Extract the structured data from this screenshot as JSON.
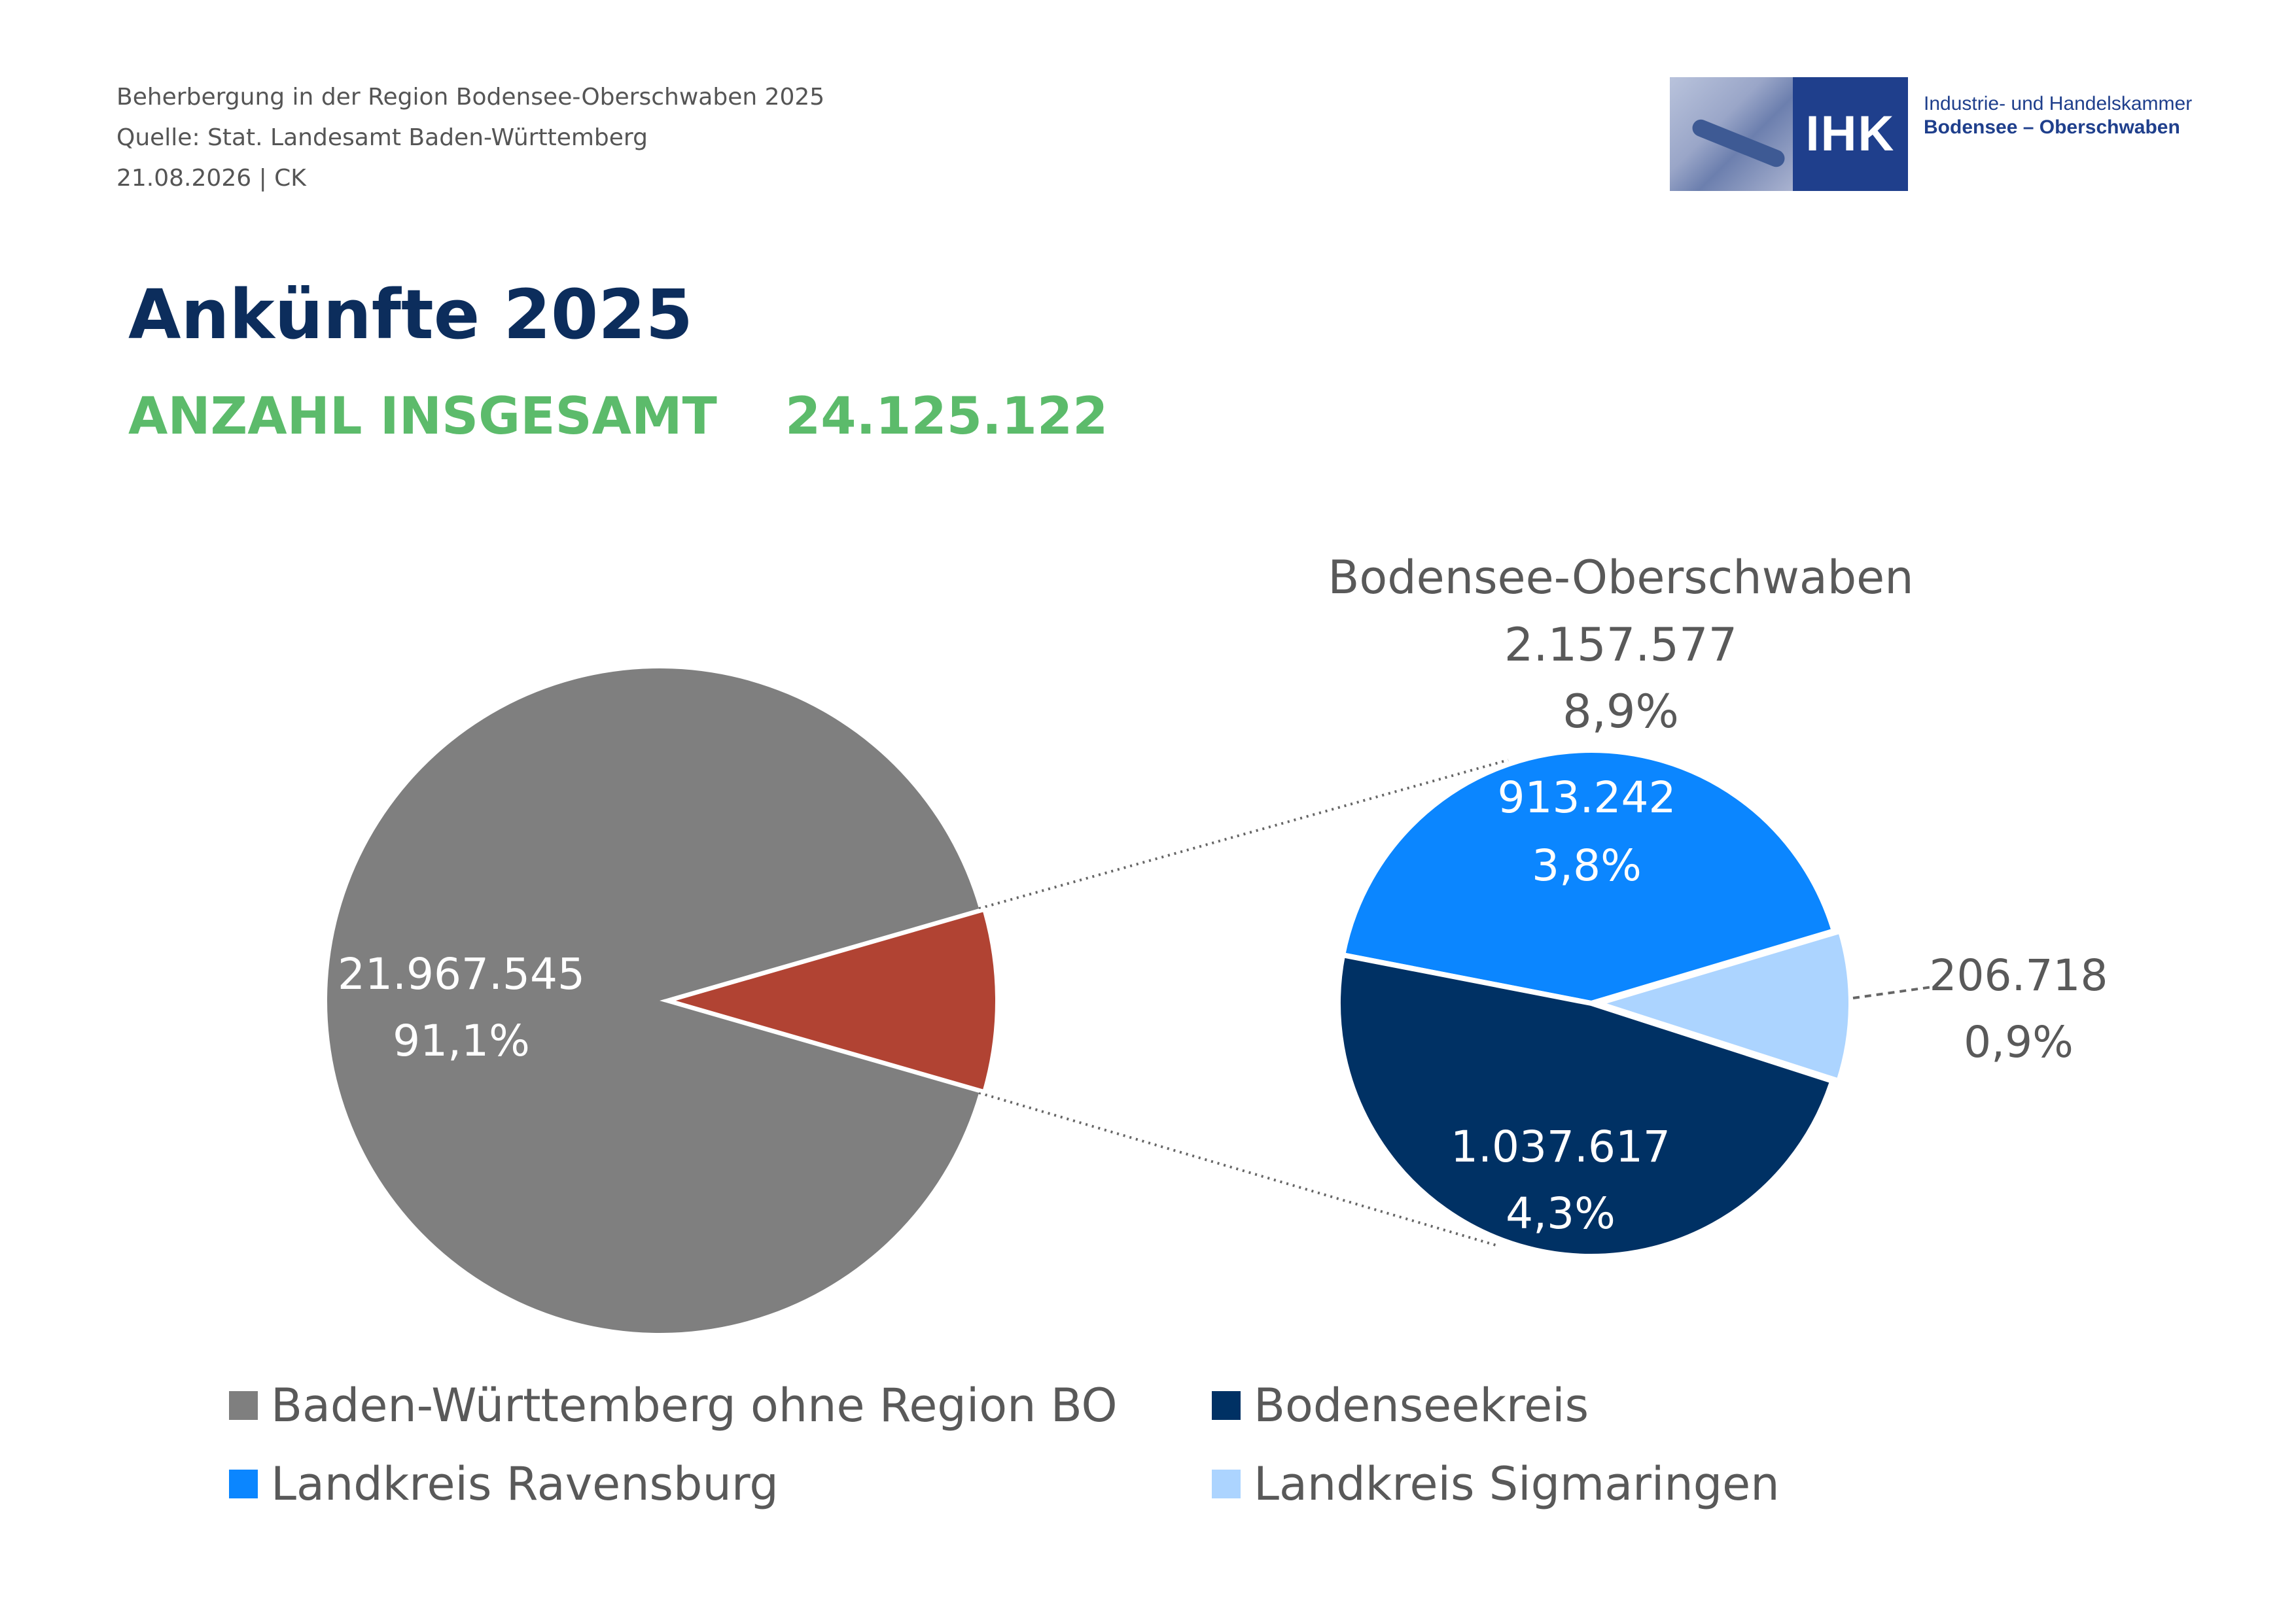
{
  "header": {
    "line1": "Beherbergung in der Region Bodensee-Oberschwaben 2025",
    "line2": "Quelle: Stat. Landesamt Baden-Württemberg",
    "line3": "21.08.2026 | CK"
  },
  "logo": {
    "box_text": "IHK",
    "line1": "Industrie- und Handelskammer",
    "line2": "Bodensee – Oberschwaben"
  },
  "title": "Ankünfte 2025",
  "total": {
    "label": "ANZAHL INSGESAMT",
    "value": "24.125.122"
  },
  "colors": {
    "grey": "#7f7f7f",
    "red": "#b14333",
    "light_blue": "#0b86ff",
    "dark_blue": "#003164",
    "pale_blue": "#acd4ff",
    "title": "#0c2d5c",
    "green": "#5cbb6b"
  },
  "chart_data": [
    {
      "type": "pie",
      "title": "",
      "slices": [
        {
          "name": "Baden-Württemberg ohne Region BO",
          "value": 21967545,
          "value_label": "21.967.545",
          "pct_label": "91,1%",
          "color": "#7f7f7f"
        },
        {
          "name": "Bodensee-Oberschwaben",
          "value": 2157577,
          "value_label": "2.157.577",
          "pct_label": "8,9%",
          "color": "#b14333"
        }
      ]
    },
    {
      "type": "pie",
      "title": "Bodensee-Oberschwaben",
      "total_label": "2.157.577",
      "total_pct_label": "8,9%",
      "slices": [
        {
          "name": "Landkreis Ravensburg",
          "value": 913242,
          "value_label": "913.242",
          "pct_label": "3,8%",
          "color": "#0b86ff"
        },
        {
          "name": "Landkreis Sigmaringen",
          "value": 206718,
          "value_label": "206.718",
          "pct_label": "0,9%",
          "color": "#acd4ff"
        },
        {
          "name": "Bodenseekreis",
          "value": 1037617,
          "value_label": "1.037.617",
          "pct_label": "4,3%",
          "color": "#003164"
        }
      ]
    }
  ],
  "legend": [
    {
      "label": "Baden-Württemberg ohne Region BO",
      "color": "#7f7f7f"
    },
    {
      "label": "Bodenseekreis",
      "color": "#003164"
    },
    {
      "label": "Landkreis Ravensburg",
      "color": "#0b86ff"
    },
    {
      "label": "Landkreis Sigmaringen",
      "color": "#acd4ff"
    }
  ]
}
